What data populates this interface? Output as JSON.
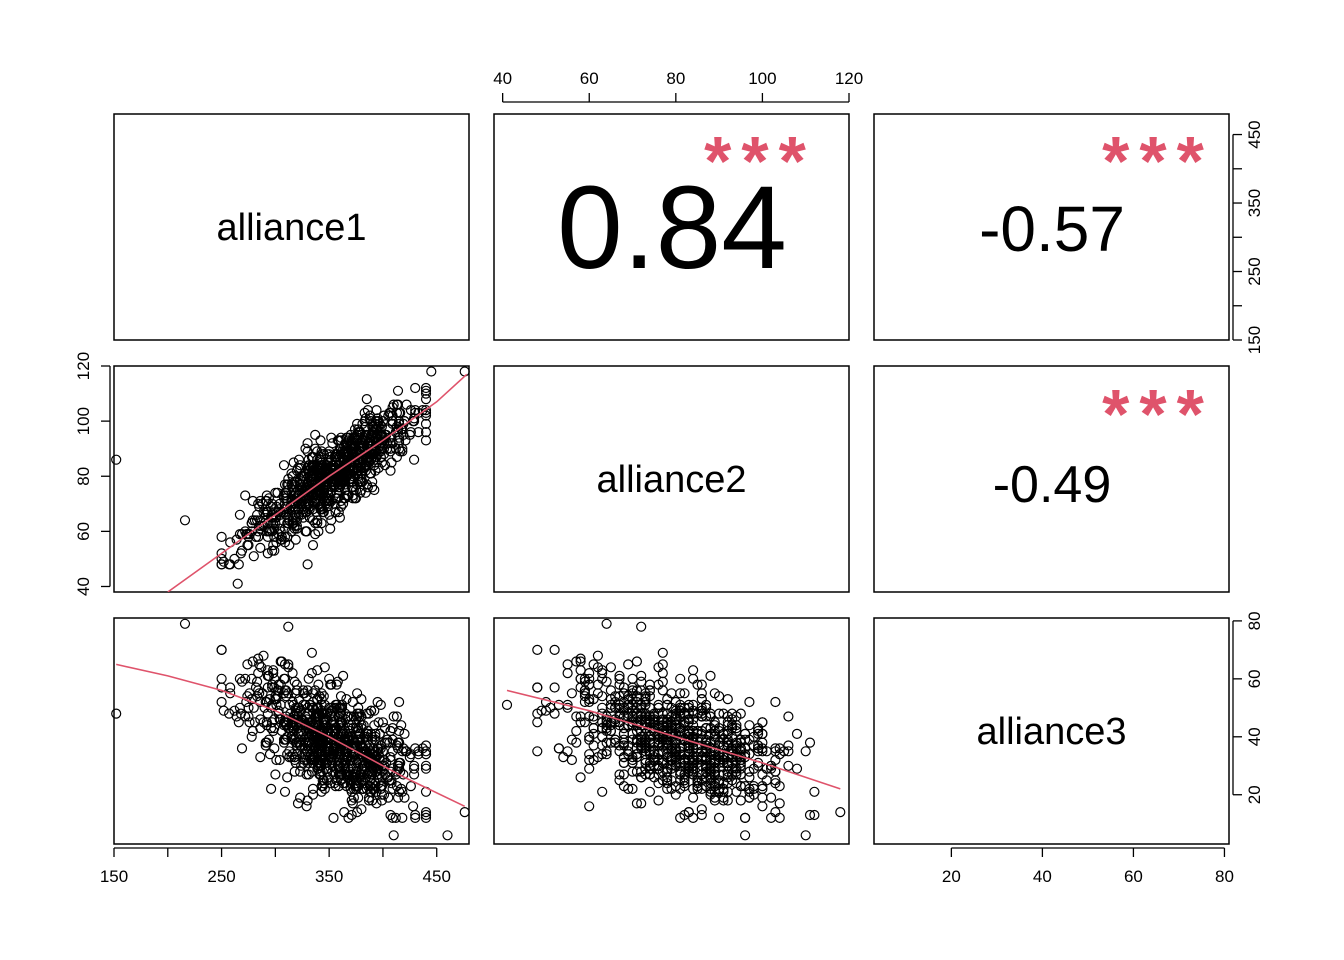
{
  "chart_data": {
    "type": "scatter",
    "title": "",
    "variables": [
      "alliance1",
      "alliance2",
      "alliance3"
    ],
    "axis_ranges": {
      "alliance1": [
        150,
        480
      ],
      "alliance2": [
        38,
        120
      ],
      "alliance3": [
        3,
        81
      ]
    },
    "axis_ticks": {
      "alliance1": {
        "values": [
          150,
          200,
          250,
          300,
          350,
          400,
          450
        ],
        "labels": [
          "150",
          "",
          "250",
          "",
          "350",
          "",
          "450"
        ]
      },
      "alliance2": {
        "values": [
          40,
          60,
          80,
          100,
          120
        ],
        "labels": [
          "40",
          "60",
          "80",
          "100",
          "120"
        ]
      },
      "alliance3": {
        "values": [
          20,
          40,
          60,
          80
        ],
        "labels": [
          "20",
          "40",
          "60",
          "80"
        ]
      }
    },
    "correlations": [
      {
        "pair": [
          "alliance1",
          "alliance2"
        ],
        "value": "0.84",
        "stars": "***"
      },
      {
        "pair": [
          "alliance1",
          "alliance3"
        ],
        "value": "-0.57",
        "stars": "***"
      },
      {
        "pair": [
          "alliance2",
          "alliance3"
        ],
        "value": "-0.49",
        "stars": "***"
      }
    ],
    "smoothers": {
      "alliance2_vs_alliance1": {
        "x": [
          200,
          250,
          300,
          350,
          400,
          450,
          478
        ],
        "y": [
          38,
          52,
          66,
          80,
          93,
          107,
          117
        ]
      },
      "alliance3_vs_alliance1": {
        "x": [
          152,
          200,
          250,
          300,
          350,
          380,
          420,
          476
        ],
        "y": [
          65,
          61,
          56,
          49,
          40,
          34,
          26,
          16
        ]
      },
      "alliance3_vs_alliance2": {
        "x": [
          41,
          60,
          80,
          100,
          118
        ],
        "y": [
          56,
          49,
          40,
          31,
          22
        ]
      }
    },
    "notable_points": {
      "alliance1_alliance2": [
        [
          152,
          86
        ],
        [
          216,
          64
        ],
        [
          265,
          41
        ],
        [
          445,
          118
        ],
        [
          476,
          118
        ]
      ],
      "alliance1_alliance3": [
        [
          152,
          48
        ],
        [
          216,
          79
        ],
        [
          312,
          78
        ],
        [
          410,
          6
        ],
        [
          460,
          6
        ],
        [
          476,
          14
        ]
      ],
      "alliance2_alliance3": [
        [
          41,
          51
        ],
        [
          64,
          79
        ],
        [
          72,
          78
        ],
        [
          96,
          6
        ],
        [
          110,
          6
        ],
        [
          118,
          14
        ]
      ]
    },
    "point_cloud": {
      "count": 900,
      "alliance1_mean": 352,
      "alliance1_sd": 38,
      "alliance2_mean": 80,
      "alliance2_sd": 12,
      "alliance3_mean": 38,
      "alliance3_sd": 11,
      "corr_12": 0.84,
      "corr_13": -0.57,
      "corr_23": -0.49
    },
    "grid": false,
    "legend": "none",
    "colors": {
      "points": "#000000",
      "smooth": "#DF536B",
      "stars": "#DF536B"
    }
  }
}
